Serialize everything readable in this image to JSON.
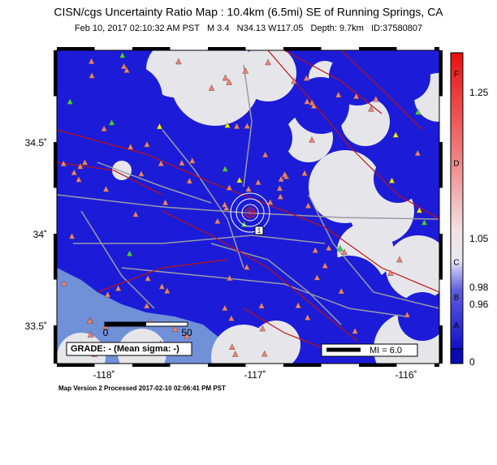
{
  "header": {
    "title": "CISN/cgs Uncertainty Ratio Map : 10.4km (6.5mi) SE of Running Springs, CA",
    "subtitle": "Feb 10, 2017 02:10:32 AM PST   M 3.4   N34.13 W117.05   Depth: 9.7km   ID:37580807"
  },
  "map": {
    "lat_labels": [
      "34.5˚",
      "34˚",
      "33.5˚"
    ],
    "lon_labels": [
      "-118˚",
      "-117˚",
      "-116˚"
    ],
    "scale_bar": {
      "start": "0",
      "end": "50"
    },
    "grade": "GRADE: - (Mean sigma: -)",
    "mi_legend": "MI = 6.0",
    "epicenter_label": "1"
  },
  "colorbar": {
    "labels": [
      "1.25",
      "1.05",
      "0.98",
      "0.96",
      "0"
    ],
    "grades": [
      "F",
      "D",
      "C",
      "B",
      "A"
    ]
  },
  "footer": "Map Version 2 Processed 2017-02-10 02:06:41 PM PST"
}
